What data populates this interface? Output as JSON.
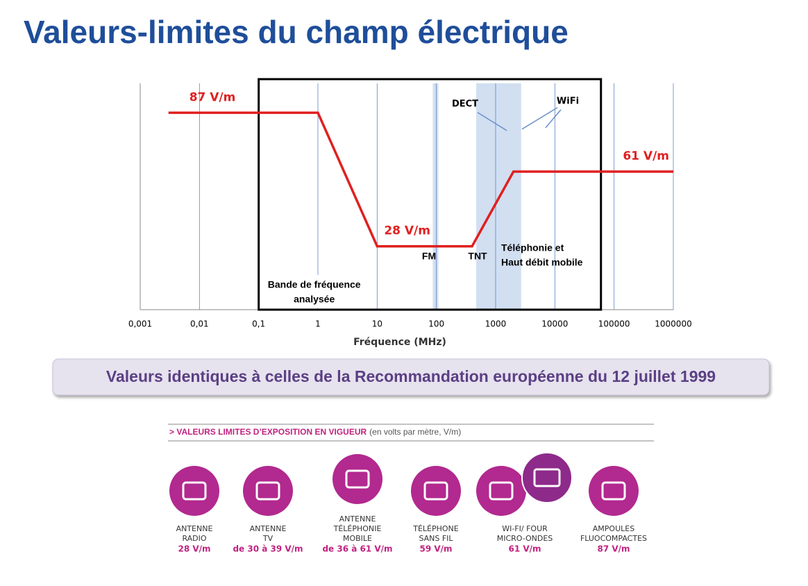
{
  "title": "Valeurs-limites du champ électrique",
  "chart_data": {
    "type": "line",
    "x": [
      0.003,
      1,
      10,
      400,
      2000,
      1000000
    ],
    "values": [
      87,
      87,
      28,
      28,
      61,
      61
    ],
    "value_labels": [
      "87 V/m",
      null,
      "28 V/m",
      null,
      null,
      "61 V/m"
    ],
    "color": "#e02020",
    "xlabel": "Fréquence (MHz)",
    "log_x": true,
    "xlim": [
      0.001,
      1000000
    ],
    "xticks": [
      {
        "value": 0.001,
        "label": "0,001"
      },
      {
        "value": 0.01,
        "label": "0,01"
      },
      {
        "value": 0.1,
        "label": "0,1"
      },
      1,
      10,
      100,
      1000,
      10000,
      100000,
      1000000
    ],
    "ylim": [
      0,
      100
    ],
    "grid": true,
    "bands": [
      {
        "lines": [
          "FM"
        ],
        "range": [
          87,
          108
        ]
      },
      {
        "lines": [
          "TNT"
        ],
        "range": [
          470,
          860
        ]
      },
      {
        "lines": [
          "Téléphonie et",
          "Haut débit mobile"
        ],
        "range": [
          860,
          2700
        ]
      }
    ],
    "analysis_box": {
      "lines": [
        "Bande de fréquence",
        "analysée"
      ],
      "range": [
        0.1,
        60000
      ]
    },
    "annotations": [
      "DECT",
      "WiFi"
    ]
  },
  "banner": "Valeurs identiques à celles de la Recommandation européenne du 12 juillet 1999",
  "legend_header": {
    "title": "> VALEURS LIMITES D’EXPOSITION EN VIGUEUR",
    "unit": "(en volts par mètre, V/m)"
  },
  "items": [
    {
      "lines": [
        "ANTENNE",
        "RADIO"
      ],
      "value": "28 V/m"
    },
    {
      "lines": [
        "ANTENNE",
        "TV"
      ],
      "value": "de 30 à 39 V/m"
    },
    {
      "lines": [
        "ANTENNE",
        "TÉLÉPHONIE",
        "MOBILE"
      ],
      "value": "de 36 à 61 V/m"
    },
    {
      "lines": [
        "TÉLÉPHONE",
        "SANS FIL"
      ],
      "value": "59 V/m"
    },
    {
      "lines": [
        "WI-FI/ FOUR",
        "MICRO-ONDES"
      ],
      "value": "61 V/m"
    },
    {
      "lines": [
        "AMPOULES",
        "FLUOCOMPACTES"
      ],
      "value": "87 V/m"
    }
  ]
}
